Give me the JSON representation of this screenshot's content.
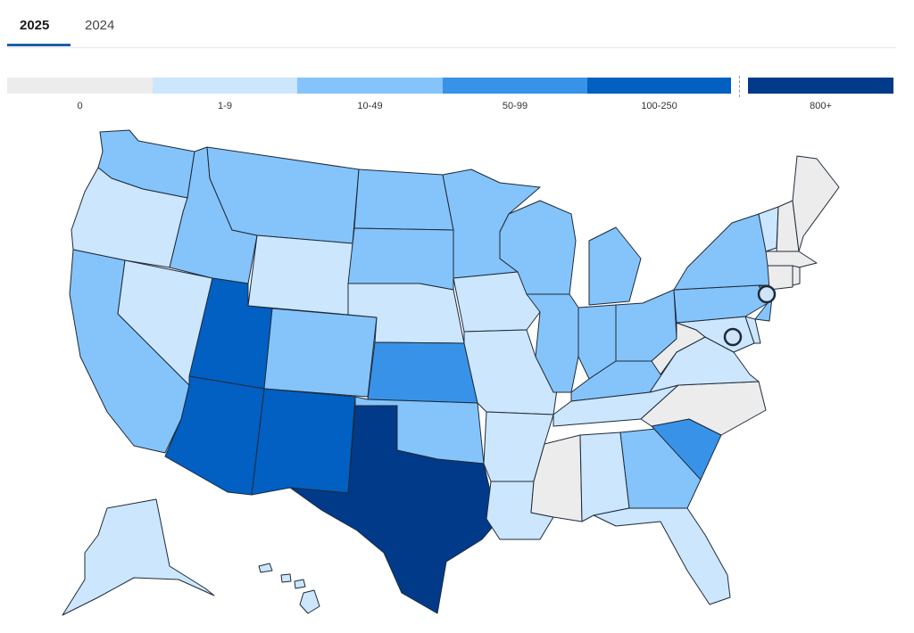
{
  "tabs": [
    {
      "label": "2025",
      "active": true
    },
    {
      "label": "2024",
      "active": false
    }
  ],
  "legend": {
    "bins": [
      {
        "label": "0",
        "color": "#ececec"
      },
      {
        "label": "1-9",
        "color": "#cce6fd"
      },
      {
        "label": "10-49",
        "color": "#84c4fb"
      },
      {
        "label": "50-99",
        "color": "#3893e8"
      },
      {
        "label": "100-250",
        "color": "#0160c2"
      },
      {
        "label": "800+",
        "color": "#023a8a"
      }
    ]
  },
  "map": {
    "states": [
      {
        "name": "Washington",
        "bin": "10-49"
      },
      {
        "name": "Oregon",
        "bin": "1-9"
      },
      {
        "name": "California",
        "bin": "10-49"
      },
      {
        "name": "Nevada",
        "bin": "1-9"
      },
      {
        "name": "Idaho",
        "bin": "10-49"
      },
      {
        "name": "Montana",
        "bin": "10-49"
      },
      {
        "name": "Wyoming",
        "bin": "1-9"
      },
      {
        "name": "Utah",
        "bin": "100-250"
      },
      {
        "name": "Arizona",
        "bin": "100-250"
      },
      {
        "name": "Colorado",
        "bin": "10-49"
      },
      {
        "name": "New Mexico",
        "bin": "100-250"
      },
      {
        "name": "North Dakota",
        "bin": "10-49"
      },
      {
        "name": "South Dakota",
        "bin": "10-49"
      },
      {
        "name": "Nebraska",
        "bin": "1-9"
      },
      {
        "name": "Kansas",
        "bin": "50-99"
      },
      {
        "name": "Oklahoma",
        "bin": "10-49"
      },
      {
        "name": "Texas",
        "bin": "800+"
      },
      {
        "name": "Minnesota",
        "bin": "10-49"
      },
      {
        "name": "Iowa",
        "bin": "1-9"
      },
      {
        "name": "Missouri",
        "bin": "1-9"
      },
      {
        "name": "Arkansas",
        "bin": "1-9"
      },
      {
        "name": "Louisiana",
        "bin": "1-9"
      },
      {
        "name": "Wisconsin",
        "bin": "10-49"
      },
      {
        "name": "Illinois",
        "bin": "10-49"
      },
      {
        "name": "Michigan",
        "bin": "10-49"
      },
      {
        "name": "Indiana",
        "bin": "10-49"
      },
      {
        "name": "Ohio",
        "bin": "10-49"
      },
      {
        "name": "Kentucky",
        "bin": "10-49"
      },
      {
        "name": "Tennessee",
        "bin": "1-9"
      },
      {
        "name": "Mississippi",
        "bin": "0"
      },
      {
        "name": "Alabama",
        "bin": "1-9"
      },
      {
        "name": "Georgia",
        "bin": "10-49"
      },
      {
        "name": "Florida",
        "bin": "1-9"
      },
      {
        "name": "South Carolina",
        "bin": "50-99"
      },
      {
        "name": "North Carolina",
        "bin": "0"
      },
      {
        "name": "Virginia",
        "bin": "1-9"
      },
      {
        "name": "West Virginia",
        "bin": "0"
      },
      {
        "name": "Maryland",
        "bin": "1-9"
      },
      {
        "name": "Delaware",
        "bin": "1-9"
      },
      {
        "name": "Pennsylvania",
        "bin": "10-49"
      },
      {
        "name": "New Jersey",
        "bin": "10-49"
      },
      {
        "name": "New York",
        "bin": "10-49"
      },
      {
        "name": "Connecticut",
        "bin": "0"
      },
      {
        "name": "Rhode Island",
        "bin": "0"
      },
      {
        "name": "Massachusetts",
        "bin": "0"
      },
      {
        "name": "Vermont",
        "bin": "1-9"
      },
      {
        "name": "New Hampshire",
        "bin": "0"
      },
      {
        "name": "Maine",
        "bin": "0"
      },
      {
        "name": "Alaska",
        "bin": "1-9"
      },
      {
        "name": "Hawaii",
        "bin": "1-9"
      }
    ]
  }
}
